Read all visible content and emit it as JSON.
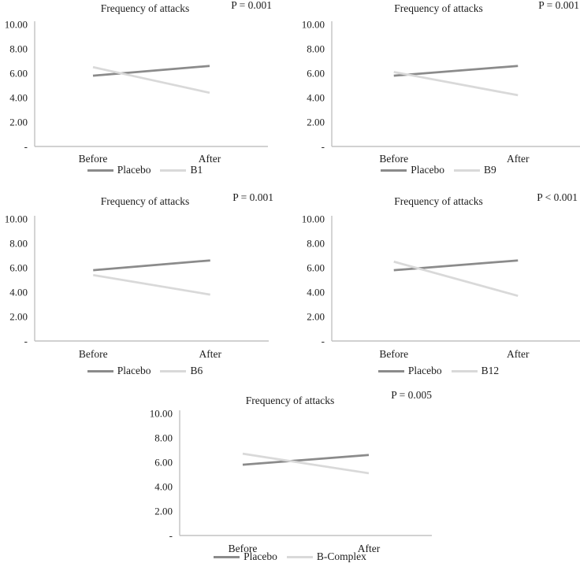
{
  "page": {
    "background": "#ffffff"
  },
  "colors": {
    "placebo_line": "#8b8b8b",
    "treatment_line": "#d9d9d9",
    "axis": "#c2c2c2",
    "text": "#1c1c1c"
  },
  "chart_data": [
    {
      "type": "line",
      "title": "Frequency of attacks",
      "p_label": "P = 0.001",
      "categories": [
        "Before",
        "After"
      ],
      "series": [
        {
          "name": "Placebo",
          "values": [
            5.8,
            6.6
          ],
          "color": "#8b8b8b"
        },
        {
          "name": "B1",
          "values": [
            6.5,
            4.4
          ],
          "color": "#d9d9d9"
        }
      ],
      "ylim": [
        0,
        10
      ],
      "yticks": [
        {
          "value": 10,
          "label": "10.00"
        },
        {
          "value": 8,
          "label": "8.00"
        },
        {
          "value": 6,
          "label": "6.00"
        },
        {
          "value": 4,
          "label": "4.00"
        },
        {
          "value": 2,
          "label": "2.00"
        },
        {
          "value": 0,
          "label": "-"
        }
      ],
      "grid": false,
      "legend_position": "bottom"
    },
    {
      "type": "line",
      "title": "Frequency of attacks",
      "p_label": "P = 0.001",
      "categories": [
        "Before",
        "After"
      ],
      "series": [
        {
          "name": "Placebo",
          "values": [
            5.8,
            6.6
          ],
          "color": "#8b8b8b"
        },
        {
          "name": "B9",
          "values": [
            6.1,
            4.2
          ],
          "color": "#d9d9d9"
        }
      ],
      "ylim": [
        0,
        10
      ],
      "yticks": [
        {
          "value": 10,
          "label": "10.00"
        },
        {
          "value": 8,
          "label": "8.00"
        },
        {
          "value": 6,
          "label": "6.00"
        },
        {
          "value": 4,
          "label": "4.00"
        },
        {
          "value": 2,
          "label": "2.00"
        },
        {
          "value": 0,
          "label": "-"
        }
      ],
      "grid": false,
      "legend_position": "bottom"
    },
    {
      "type": "line",
      "title": "Frequency of attacks",
      "p_label": "P = 0.001",
      "categories": [
        "Before",
        "After"
      ],
      "series": [
        {
          "name": "Placebo",
          "values": [
            5.8,
            6.6
          ],
          "color": "#8b8b8b"
        },
        {
          "name": "B6",
          "values": [
            5.4,
            3.8
          ],
          "color": "#d9d9d9"
        }
      ],
      "ylim": [
        0,
        10
      ],
      "yticks": [
        {
          "value": 10,
          "label": "10.00"
        },
        {
          "value": 8,
          "label": "8.00"
        },
        {
          "value": 6,
          "label": "6.00"
        },
        {
          "value": 4,
          "label": "4.00"
        },
        {
          "value": 2,
          "label": "2.00"
        },
        {
          "value": 0,
          "label": "-"
        }
      ],
      "grid": false,
      "legend_position": "bottom"
    },
    {
      "type": "line",
      "title": "Frequency of attacks",
      "p_label": "P < 0.001",
      "categories": [
        "Before",
        "After"
      ],
      "series": [
        {
          "name": "Placebo",
          "values": [
            5.8,
            6.6
          ],
          "color": "#8b8b8b"
        },
        {
          "name": "B12",
          "values": [
            6.5,
            3.7
          ],
          "color": "#d9d9d9"
        }
      ],
      "ylim": [
        0,
        10
      ],
      "yticks": [
        {
          "value": 10,
          "label": "10.00"
        },
        {
          "value": 8,
          "label": "8.00"
        },
        {
          "value": 6,
          "label": "6.00"
        },
        {
          "value": 4,
          "label": "4.00"
        },
        {
          "value": 2,
          "label": "2.00"
        },
        {
          "value": 0,
          "label": "-"
        }
      ],
      "grid": false,
      "legend_position": "bottom"
    },
    {
      "type": "line",
      "title": "Frequency of attacks",
      "p_label": "P = 0.005",
      "categories": [
        "Before",
        "After"
      ],
      "series": [
        {
          "name": "Placebo",
          "values": [
            5.8,
            6.6
          ],
          "color": "#8b8b8b"
        },
        {
          "name": "B-Complex",
          "values": [
            6.7,
            5.1
          ],
          "color": "#d9d9d9"
        }
      ],
      "ylim": [
        0,
        10
      ],
      "yticks": [
        {
          "value": 10,
          "label": "10.00"
        },
        {
          "value": 8,
          "label": "8.00"
        },
        {
          "value": 6,
          "label": "6.00"
        },
        {
          "value": 4,
          "label": "4.00"
        },
        {
          "value": 2,
          "label": "2.00"
        },
        {
          "value": 0,
          "label": "-"
        }
      ],
      "grid": false,
      "legend_position": "bottom"
    }
  ]
}
